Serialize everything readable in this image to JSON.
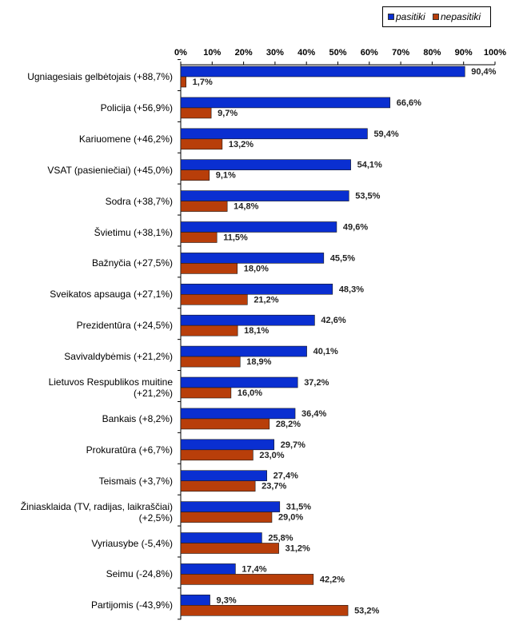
{
  "chart_data": {
    "type": "bar",
    "orientation": "horizontal",
    "xlim": [
      0,
      100
    ],
    "x_ticks": [
      "0%",
      "10%",
      "20%",
      "30%",
      "40%",
      "50%",
      "60%",
      "70%",
      "80%",
      "90%",
      "100%"
    ],
    "x_axis_position": "top",
    "grid": false,
    "legend_position": "top-right",
    "categories": [
      "Ugniagesiais gelbėtojais (+88,7%)",
      "Policija (+56,9%)",
      "Kariuomene (+46,2%)",
      "VSAT (pasieniečiai) (+45,0%)",
      "Sodra (+38,7%)",
      "Švietimu (+38,1%)",
      "Bažnyčia (+27,5%)",
      "Sveikatos apsauga (+27,1%)",
      "Prezidentūra (+24,5%)",
      "Savivaldybėmis (+21,2%)",
      "Lietuvos Respublikos muitine (+21,2%)",
      "Bankais (+8,2%)",
      "Prokuratūra (+6,7%)",
      "Teismais (+3,7%)",
      "Žiniasklaida (TV, radijas, laikraščiai) (+2,5%)",
      "Vyriausybe (-5,4%)",
      "Seimu (-24,8%)",
      "Partijomis (-43,9%)"
    ],
    "category_lines": [
      [
        "Ugniagesiais gelbėtojais (+88,7%)"
      ],
      [
        "Policija (+56,9%)"
      ],
      [
        "Kariuomene (+46,2%)"
      ],
      [
        "VSAT (pasieniečiai) (+45,0%)"
      ],
      [
        "Sodra (+38,7%)"
      ],
      [
        "Švietimu (+38,1%)"
      ],
      [
        "Bažnyčia (+27,5%)"
      ],
      [
        "Sveikatos apsauga (+27,1%)"
      ],
      [
        "Prezidentūra (+24,5%)"
      ],
      [
        "Savivaldybėmis (+21,2%)"
      ],
      [
        "Lietuvos Respublikos muitine",
        "(+21,2%)"
      ],
      [
        "Bankais (+8,2%)"
      ],
      [
        "Prokuratūra (+6,7%)"
      ],
      [
        "Teismais (+3,7%)"
      ],
      [
        "Žiniasklaida (TV, radijas, laikraščiai)",
        "(+2,5%)"
      ],
      [
        "Vyriausybe (-5,4%)"
      ],
      [
        "Seimu (-24,8%)"
      ],
      [
        "Partijomis (-43,9%)"
      ]
    ],
    "series": [
      {
        "name": "pasitiki",
        "color": "#0a2fd1",
        "values": [
          90.4,
          66.6,
          59.4,
          54.1,
          53.5,
          49.6,
          45.5,
          48.3,
          42.6,
          40.1,
          37.2,
          36.4,
          29.7,
          27.4,
          31.5,
          25.8,
          17.4,
          9.3
        ],
        "labels": [
          "90,4%",
          "66,6%",
          "59,4%",
          "54,1%",
          "53,5%",
          "49,6%",
          "45,5%",
          "48,3%",
          "42,6%",
          "40,1%",
          "37,2%",
          "36,4%",
          "29,7%",
          "27,4%",
          "31,5%",
          "25,8%",
          "17,4%",
          "9,3%"
        ]
      },
      {
        "name": "nepasitiki",
        "color": "#b83e0a",
        "values": [
          1.7,
          9.7,
          13.2,
          9.1,
          14.8,
          11.5,
          18.0,
          21.2,
          18.1,
          18.9,
          16.0,
          28.2,
          23.0,
          23.7,
          29.0,
          31.2,
          42.2,
          53.2
        ],
        "labels": [
          "1,7%",
          "9,7%",
          "13,2%",
          "9,1%",
          "14,8%",
          "11,5%",
          "18,0%",
          "21,2%",
          "18,1%",
          "18,9%",
          "16,0%",
          "28,2%",
          "23,0%",
          "23,7%",
          "29,0%",
          "31,2%",
          "42,2%",
          "53,2%"
        ]
      }
    ]
  }
}
